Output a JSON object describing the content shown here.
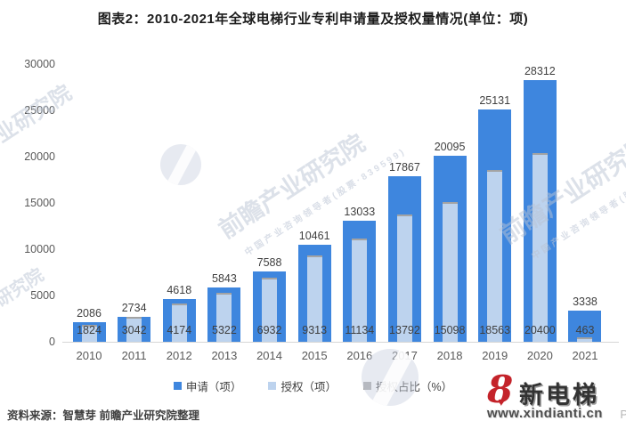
{
  "title": "图表2：2010-2021年全球电梯行业专利申请量及授权量情况(单位：项)",
  "source": "资料来源：智慧芽 前瞻产业研究院整理",
  "legend": {
    "items": [
      {
        "label": "申请（项）",
        "color": "#3e86de"
      },
      {
        "label": "授权（项）",
        "color": "#bdd3ee"
      },
      {
        "label": "授权占比（%）",
        "color": "#a6a6a6"
      }
    ]
  },
  "logo": {
    "brand": "新电梯",
    "url": "www.xindianti.cn",
    "remnant": "P",
    "accent_color": "#c4232a"
  },
  "watermark": {
    "text": "前瞻产业研究院",
    "subtext": "中国产业咨询领导者(股票·839599)",
    "short_text": "产业研究院"
  },
  "chart_data": {
    "type": "bar",
    "title": "图表2：2010-2021年全球电梯行业专利申请量及授权量情况(单位：项)",
    "categories": [
      "2010",
      "2011",
      "2012",
      "2013",
      "2014",
      "2015",
      "2016",
      "2017",
      "2018",
      "2019",
      "2020",
      "2021"
    ],
    "series": [
      {
        "name": "申请（项）",
        "color": "#3e86de",
        "values": [
          2086,
          2734,
          4618,
          5843,
          7588,
          10461,
          13033,
          17867,
          20095,
          25131,
          28312,
          3338
        ]
      },
      {
        "name": "授权（项）",
        "color": "#bdd3ee",
        "values": [
          1824,
          3042,
          4174,
          5322,
          6932,
          9313,
          11134,
          13792,
          15098,
          18563,
          20400,
          463
        ]
      }
    ],
    "extra_legend_series": "授权占比（%）",
    "xlabel": "",
    "ylabel": "",
    "ylim": [
      0,
      30000
    ],
    "y_ticks": [
      0,
      5000,
      10000,
      15000,
      20000,
      25000,
      30000
    ],
    "grid": false,
    "legend_position": "bottom"
  }
}
